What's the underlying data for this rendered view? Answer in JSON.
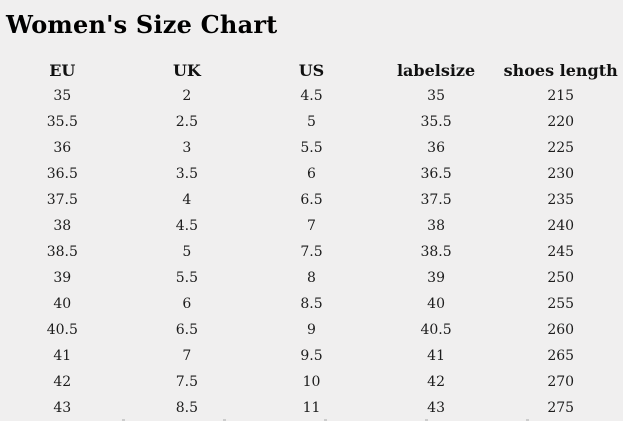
{
  "title": "Women's Size Chart",
  "chart_data": {
    "type": "table",
    "title": "Women's Size Chart",
    "columns": [
      "EU",
      "UK",
      "US",
      "labelsize",
      "shoes length"
    ],
    "rows": [
      [
        "35",
        "2",
        "4.5",
        "35",
        "215"
      ],
      [
        "35.5",
        "2.5",
        "5",
        "35.5",
        "220"
      ],
      [
        "36",
        "3",
        "5.5",
        "36",
        "225"
      ],
      [
        "36.5",
        "3.5",
        "6",
        "36.5",
        "230"
      ],
      [
        "37.5",
        "4",
        "6.5",
        "37.5",
        "235"
      ],
      [
        "38",
        "4.5",
        "7",
        "38",
        "240"
      ],
      [
        "38.5",
        "5",
        "7.5",
        "38.5",
        "245"
      ],
      [
        "39",
        "5.5",
        "8",
        "39",
        "250"
      ],
      [
        "40",
        "6",
        "8.5",
        "40",
        "255"
      ],
      [
        "40.5",
        "6.5",
        "9",
        "40.5",
        "260"
      ],
      [
        "41",
        "7",
        "9.5",
        "41",
        "265"
      ],
      [
        "42",
        "7.5",
        "10",
        "42",
        "270"
      ],
      [
        "43",
        "8.5",
        "11",
        "43",
        "275"
      ]
    ],
    "layout": {
      "legend": "none",
      "grid": "off",
      "header_row": true,
      "cell_alignment": "center"
    }
  },
  "colors": {
    "background": "#f0efef",
    "title_text": "#000000",
    "body_text": "#1c1c1c",
    "faint_border": "#cccccc"
  }
}
